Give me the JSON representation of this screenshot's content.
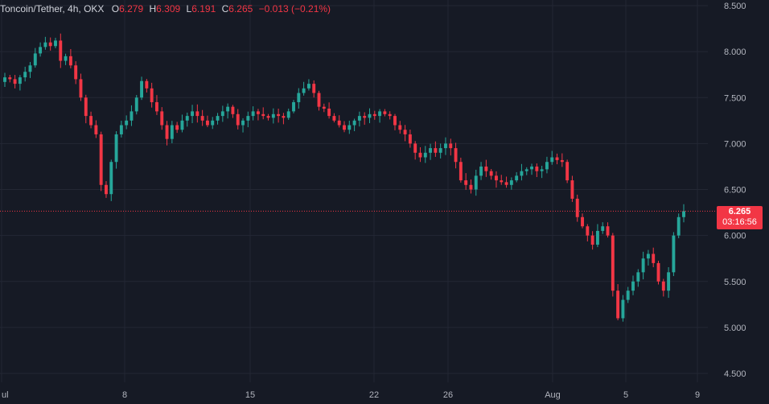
{
  "legend": {
    "symbol": "Toncoin/Tether, 4h, OKX",
    "o_label": "O",
    "o_value": "6.279",
    "h_label": "H",
    "h_value": "6.309",
    "l_label": "L",
    "l_value": "6.191",
    "c_label": "C",
    "c_value": "6.265",
    "change": "−0.013 (−0.21%)"
  },
  "price_tag": {
    "price": "6.265",
    "countdown": "03:16:56"
  },
  "colors": {
    "up": "#26a69a",
    "down": "#f23645",
    "background": "#161a25",
    "grid": "#232734"
  },
  "chart_data": {
    "type": "candlestick",
    "ylim": [
      4.4,
      8.55
    ],
    "y_ticks": [
      "8.500",
      "8.000",
      "7.500",
      "7.000",
      "6.500",
      "6.000",
      "5.500",
      "5.000",
      "4.500"
    ],
    "x_tick_labels": [
      "Jul",
      "8",
      "15",
      "22",
      "26",
      "Aug",
      "5",
      "9"
    ],
    "last_price": 6.265,
    "close_series": [
      7.72,
      7.7,
      7.65,
      7.72,
      7.78,
      7.85,
      7.98,
      8.05,
      8.1,
      8.06,
      8.12,
      7.9,
      7.95,
      7.85,
      7.7,
      7.5,
      7.3,
      7.2,
      7.1,
      6.55,
      6.45,
      6.8,
      7.1,
      7.2,
      7.25,
      7.35,
      7.5,
      7.68,
      7.6,
      7.45,
      7.35,
      7.2,
      7.05,
      7.2,
      7.15,
      7.25,
      7.3,
      7.35,
      7.3,
      7.25,
      7.2,
      7.25,
      7.3,
      7.35,
      7.4,
      7.32,
      7.2,
      7.25,
      7.3,
      7.35,
      7.32,
      7.3,
      7.28,
      7.32,
      7.3,
      7.28,
      7.35,
      7.45,
      7.55,
      7.6,
      7.65,
      7.55,
      7.4,
      7.38,
      7.3,
      7.25,
      7.2,
      7.15,
      7.2,
      7.25,
      7.3,
      7.28,
      7.32,
      7.3,
      7.35,
      7.32,
      7.3,
      7.2,
      7.15,
      7.1,
      7.0,
      6.9,
      6.85,
      6.9,
      6.95,
      6.9,
      6.95,
      7.0,
      6.95,
      6.8,
      6.6,
      6.55,
      6.5,
      6.65,
      6.75,
      6.7,
      6.65,
      6.6,
      6.58,
      6.55,
      6.6,
      6.65,
      6.7,
      6.72,
      6.75,
      6.7,
      6.72,
      6.8,
      6.85,
      6.82,
      6.8,
      6.6,
      6.4,
      6.2,
      6.1,
      6.0,
      5.9,
      6.05,
      6.1,
      6.0,
      5.4,
      5.1,
      5.3,
      5.4,
      5.5,
      5.6,
      5.75,
      5.8,
      5.7,
      5.5,
      5.4,
      5.6,
      6.0,
      6.2,
      6.265
    ]
  }
}
